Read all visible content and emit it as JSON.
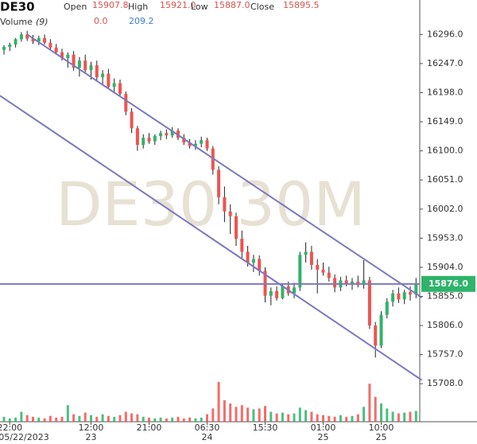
{
  "chart_data": {
    "type": "candlestick",
    "symbol": "DE30",
    "watermark": "DE30 30M",
    "header": {
      "open_label": "Open",
      "open": "15907.8",
      "high_label": "High",
      "high": "15921.0",
      "low_label": "Low",
      "low": "15887.0",
      "close_label": "Close",
      "close": "15895.5",
      "volume_label": "Volume",
      "volume_period": "(9)",
      "volume_a": "0.0",
      "volume_b": "209.2"
    },
    "up_color": "#2fb36a",
    "down_color": "#ef5350",
    "volume_color": "#2fb36a",
    "volume_down_color": "#ef5350",
    "line_color": "#7b78c0",
    "ylim": [
      15644,
      16354
    ],
    "yticks": [
      {
        "value": 16296,
        "label": "16296.0"
      },
      {
        "value": 16247,
        "label": "16247.0"
      },
      {
        "value": 16198,
        "label": "16198.0"
      },
      {
        "value": 16149,
        "label": "16149.0"
      },
      {
        "value": 16100,
        "label": "16100.0"
      },
      {
        "value": 16051,
        "label": "16051.0"
      },
      {
        "value": 16002,
        "label": "16002.0"
      },
      {
        "value": 15953,
        "label": "15953.0"
      },
      {
        "value": 15904,
        "label": "15904.0"
      },
      {
        "value": 15855,
        "label": "15855.0"
      },
      {
        "value": 15806,
        "label": "15806.0"
      },
      {
        "value": 15757,
        "label": "15757.0"
      },
      {
        "value": 15708,
        "label": "15708.0"
      }
    ],
    "price_label": {
      "value": 15876,
      "label": "15876.0"
    },
    "trendlines": [
      [
        [
          4,
          16296
        ],
        [
          72,
          15853
        ]
      ],
      [
        [
          -0.7,
          16193
        ],
        [
          72,
          15714
        ]
      ]
    ],
    "categories": [
      null,
      "22:00",
      null,
      null,
      null,
      null,
      null,
      null,
      null,
      null,
      null,
      null,
      null,
      null,
      null,
      "12:00",
      null,
      null,
      null,
      null,
      null,
      null,
      null,
      null,
      null,
      "21:00",
      null,
      null,
      null,
      null,
      null,
      null,
      null,
      null,
      null,
      "06:30",
      null,
      null,
      null,
      null,
      null,
      null,
      null,
      null,
      null,
      "15:30",
      null,
      null,
      null,
      null,
      null,
      null,
      null,
      null,
      null,
      "01:00",
      null,
      null,
      null,
      null,
      null,
      null,
      null,
      null,
      null,
      "10:00",
      null,
      null,
      null,
      null,
      null,
      null
    ],
    "dates": [
      null,
      "05/22/2023",
      null,
      null,
      null,
      null,
      null,
      null,
      null,
      null,
      null,
      null,
      null,
      null,
      null,
      "23",
      null,
      null,
      null,
      null,
      null,
      null,
      null,
      null,
      null,
      null,
      null,
      null,
      null,
      null,
      null,
      null,
      null,
      null,
      null,
      "24",
      null,
      null,
      null,
      null,
      null,
      null,
      null,
      null,
      null,
      null,
      null,
      null,
      null,
      null,
      null,
      null,
      null,
      null,
      null,
      "25",
      null,
      null,
      null,
      null,
      null,
      null,
      null,
      null,
      null,
      "25",
      null,
      null,
      null,
      null,
      null,
      null
    ],
    "open": [
      16270,
      16275,
      16279,
      16288,
      16296,
      16289,
      16284,
      16290,
      16282,
      16274,
      16266,
      16256,
      16262,
      16240,
      16252,
      16236,
      16244,
      16224,
      16230,
      16208,
      16214,
      16196,
      16166,
      16138,
      16110,
      16122,
      16116,
      16125,
      16130,
      16126,
      16134,
      16122,
      16114,
      16108,
      16112,
      16118,
      16104,
      16068,
      16022,
      15998,
      15990,
      15952,
      15930,
      15912,
      15918,
      15898,
      15856,
      15864,
      15852,
      15872,
      15860,
      15870,
      15925,
      15930,
      15908,
      15900,
      15895,
      15886,
      15870,
      15882,
      15876,
      15880,
      15874,
      15882,
      15806,
      15772,
      15824,
      15846,
      15860,
      15850,
      15862,
      15858
    ],
    "high": [
      16278,
      16282,
      16290,
      16300,
      16302,
      16295,
      16294,
      16296,
      16288,
      16280,
      16272,
      16266,
      16268,
      16258,
      16262,
      16250,
      16252,
      16236,
      16238,
      16222,
      16220,
      16200,
      16172,
      16142,
      16128,
      16130,
      16128,
      16134,
      16136,
      16140,
      16138,
      16128,
      16120,
      16118,
      16124,
      16122,
      16108,
      16074,
      16040,
      16010,
      15996,
      15966,
      15940,
      15925,
      15924,
      15904,
      15870,
      15872,
      15876,
      15880,
      15878,
      15930,
      15946,
      15940,
      15918,
      15912,
      15905,
      15892,
      15888,
      15890,
      15886,
      15890,
      15916,
      15888,
      15812,
      15830,
      15852,
      15866,
      15870,
      15866,
      15872,
      15886
    ],
    "low": [
      16262,
      16268,
      16274,
      16284,
      16285,
      16280,
      16278,
      16279,
      16270,
      16262,
      16252,
      16240,
      16235,
      16225,
      16232,
      16220,
      16218,
      16210,
      16204,
      16198,
      16192,
      16160,
      16130,
      16100,
      16104,
      16112,
      16110,
      16118,
      16120,
      16122,
      16118,
      16110,
      16104,
      16102,
      16106,
      16100,
      16060,
      16010,
      15980,
      15960,
      15940,
      15920,
      15905,
      15896,
      15890,
      15845,
      15840,
      15848,
      15850,
      15856,
      15852,
      15864,
      15912,
      15900,
      15860,
      15890,
      15880,
      15862,
      15864,
      15872,
      15866,
      15870,
      15868,
      15800,
      15752,
      15768,
      15818,
      15838,
      15844,
      15842,
      15848,
      15852
    ],
    "close": [
      16275,
      16279,
      16288,
      16296,
      16289,
      16284,
      16290,
      16282,
      16274,
      16266,
      16256,
      16262,
      16240,
      16252,
      16236,
      16244,
      16224,
      16230,
      16208,
      16214,
      16196,
      16166,
      16138,
      16110,
      16122,
      16116,
      16125,
      16130,
      16126,
      16134,
      16122,
      16114,
      16108,
      16112,
      16118,
      16104,
      16068,
      16022,
      15998,
      15990,
      15952,
      15930,
      15912,
      15918,
      15898,
      15856,
      15864,
      15852,
      15872,
      15860,
      15870,
      15925,
      15930,
      15908,
      15900,
      15895,
      15886,
      15870,
      15882,
      15876,
      15880,
      15874,
      15882,
      15806,
      15772,
      15824,
      15846,
      15860,
      15850,
      15862,
      15858,
      15876
    ],
    "volume": [
      60,
      40,
      50,
      120,
      80,
      60,
      50,
      40,
      70,
      50,
      60,
      200,
      90,
      70,
      110,
      80,
      60,
      90,
      70,
      60,
      80,
      120,
      100,
      90,
      60,
      50,
      40,
      50,
      40,
      50,
      60,
      40,
      50,
      40,
      50,
      90,
      160,
      480,
      260,
      220,
      180,
      200,
      170,
      150,
      160,
      190,
      120,
      100,
      110,
      90,
      100,
      170,
      140,
      120,
      90,
      80,
      70,
      60,
      80,
      60,
      70,
      90,
      180,
      460,
      300,
      220,
      160,
      120,
      100,
      110,
      120,
      130
    ],
    "vlim": [
      0,
      500
    ]
  }
}
